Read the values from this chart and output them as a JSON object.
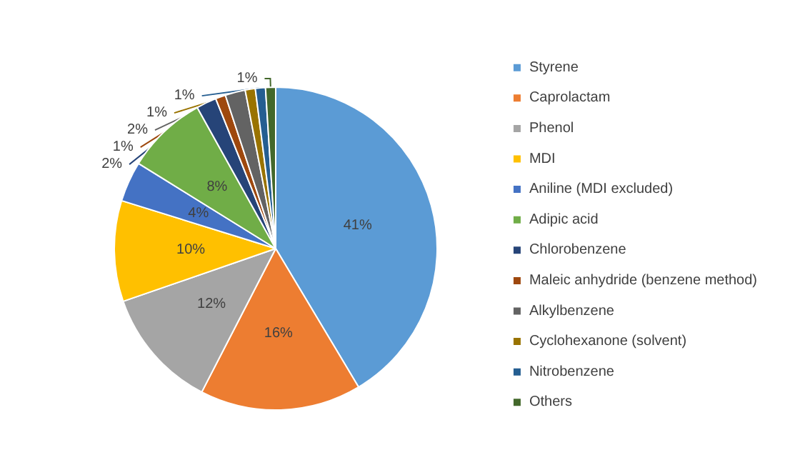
{
  "chart_data": {
    "type": "pie",
    "categories": [
      "Styrene",
      "Caprolactam",
      "Phenol",
      "MDI",
      "Aniline (MDI excluded)",
      "Adipic acid",
      "Chlorobenzene",
      "Maleic anhydride (benzene method)",
      "Alkylbenzene",
      "Cyclohexanone (solvent)",
      "Nitrobenzene",
      "Others"
    ],
    "values": [
      41,
      16,
      12,
      10,
      4,
      8,
      2,
      1,
      2,
      1,
      1,
      1
    ],
    "colors": [
      "#5b9bd5",
      "#ed7d31",
      "#a5a5a5",
      "#ffc000",
      "#4472c4",
      "#70ad47",
      "#264478",
      "#9e480e",
      "#636363",
      "#997300",
      "#255e91",
      "#43682b"
    ],
    "value_labels": [
      "41%",
      "16%",
      "12%",
      "10%",
      "4%",
      "8%",
      "2%",
      "1%",
      "2%",
      "1%",
      "1%",
      "1%"
    ],
    "legend": "right"
  }
}
